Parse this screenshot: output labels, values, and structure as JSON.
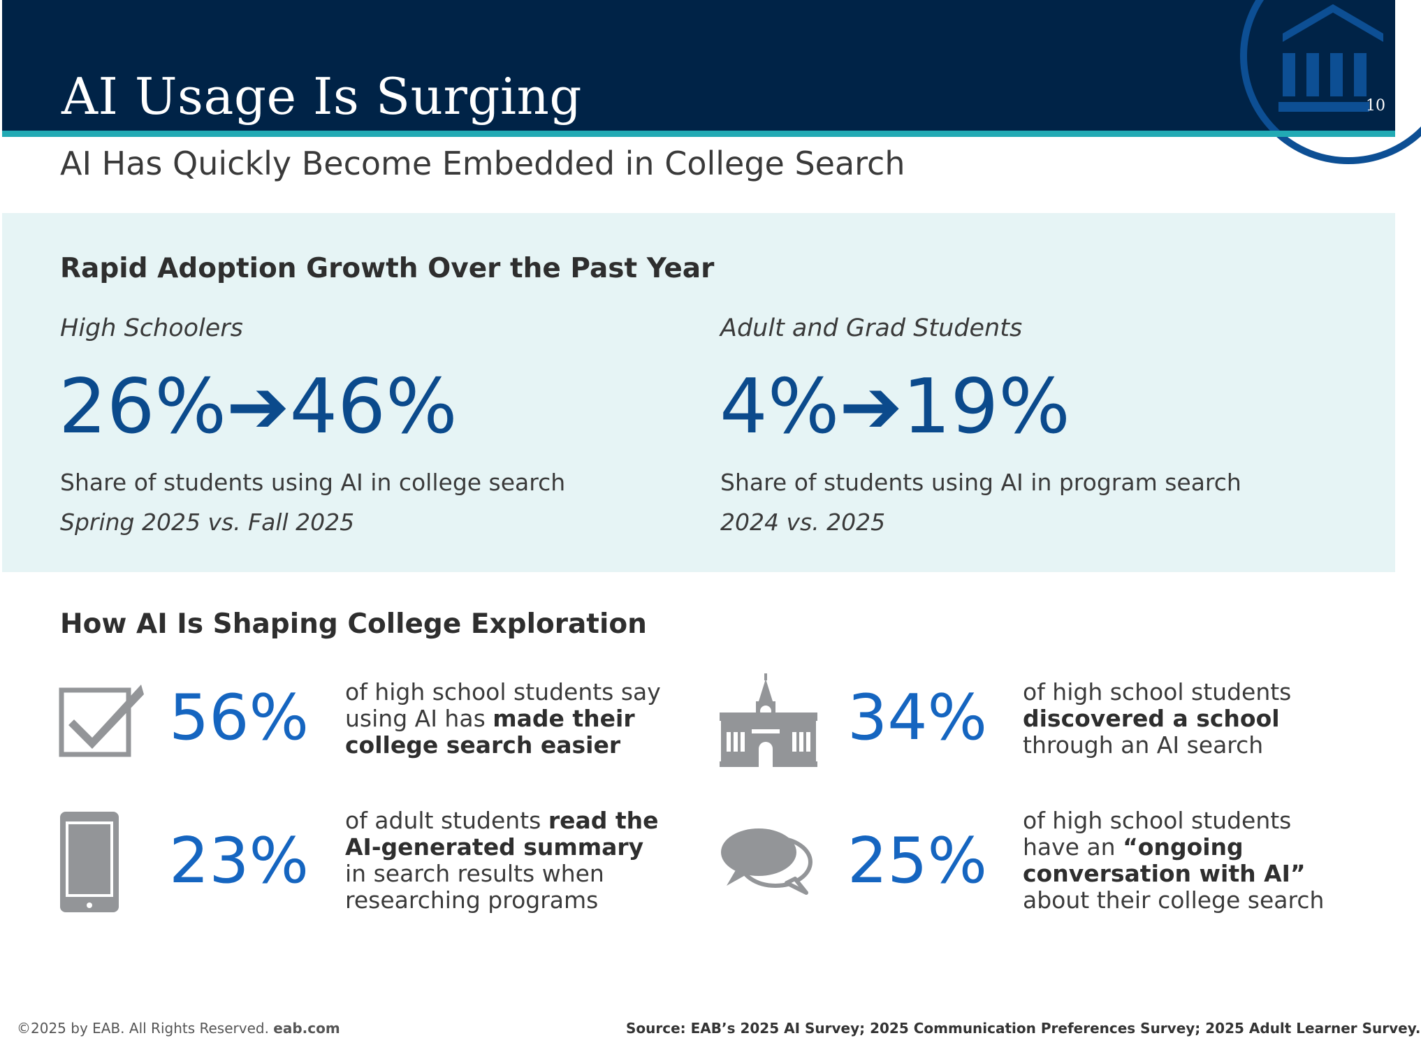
{
  "header": {
    "title": "AI Usage Is Surging",
    "page_number": "10",
    "logo_icon": "building-columns-icon"
  },
  "subtitle": "AI Has Quickly Become Embedded in College Search",
  "adoption": {
    "heading": "Rapid Adoption Growth Over the Past Year",
    "high_schoolers": {
      "label": "High Schoolers",
      "stat": "26%➔46%",
      "description": "Share of students using AI in college search",
      "period": "Spring 2025 vs. Fall 2025"
    },
    "adult_grad": {
      "label": "Adult and Grad Students",
      "stat": "4%➔19%",
      "description": "Share of students using AI in program search",
      "period": "2024 vs. 2025"
    }
  },
  "shaping": {
    "heading": "How AI Is Shaping College Exploration",
    "items": [
      {
        "icon": "checkbox-check-icon",
        "percent": "56%",
        "lines": [
          [
            {
              "t": "of high school students say",
              "b": false
            }
          ],
          [
            {
              "t": "using AI has ",
              "b": false
            },
            {
              "t": "made their",
              "b": true
            }
          ],
          [
            {
              "t": "college search easier",
              "b": true
            }
          ]
        ]
      },
      {
        "icon": "school-building-icon",
        "percent": "34%",
        "lines": [
          [
            {
              "t": "of high school students",
              "b": false
            }
          ],
          [
            {
              "t": "discovered a school",
              "b": true
            }
          ],
          [
            {
              "t": "through an AI search",
              "b": false
            }
          ]
        ]
      },
      {
        "icon": "mobile-phone-icon",
        "percent": "23%",
        "lines": [
          [
            {
              "t": "of adult students ",
              "b": false
            },
            {
              "t": "read the",
              "b": true
            }
          ],
          [
            {
              "t": "AI-generated summary",
              "b": true
            }
          ],
          [
            {
              "t": "in search results when",
              "b": false
            }
          ],
          [
            {
              "t": "researching programs",
              "b": false
            }
          ]
        ]
      },
      {
        "icon": "speech-bubbles-icon",
        "percent": "25%",
        "lines": [
          [
            {
              "t": "of high school students",
              "b": false
            }
          ],
          [
            {
              "t": "have an ",
              "b": false
            },
            {
              "t": "“ongoing",
              "b": true
            }
          ],
          [
            {
              "t": "conversation with AI”",
              "b": true
            }
          ],
          [
            {
              "t": "about their college search",
              "b": false
            }
          ]
        ]
      }
    ]
  },
  "footer": {
    "copyright": "©2025 by EAB. All Rights Reserved.",
    "site": "eab.com",
    "source": "Source: EAB’s 2025 AI Survey; 2025 Communication Preferences Survey; 2025 Adult Learner Survey."
  },
  "colors": {
    "header_bg": "#002347",
    "accent_teal": "#22aab4",
    "band_bg": "#e6f4f5",
    "stat_dark_blue": "#0b4a8c",
    "stat_blue": "#1565c0",
    "icon_gray": "#939598"
  }
}
